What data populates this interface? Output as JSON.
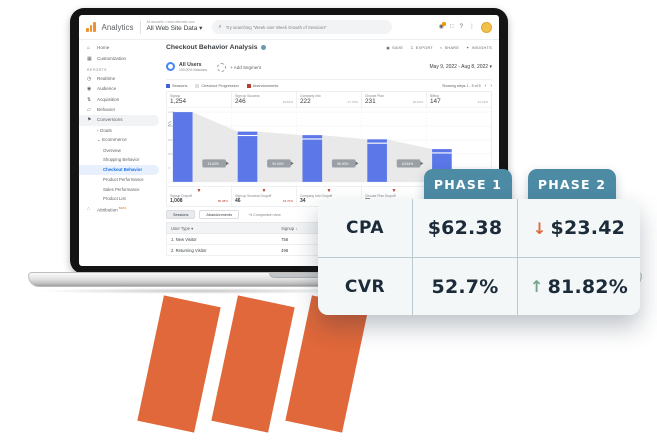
{
  "colors": {
    "accent_orange": "#e0683a",
    "tab_teal": "#4d8aa4",
    "card_bg": "#f4f7f8",
    "dark_text": "#1c2b39",
    "bar_blue": "#5b77e8",
    "legend_blue": "#4262d6",
    "legend_gray": "#e0e0e0",
    "legend_red": "#b3402e",
    "dropoff_red": "#c0392b",
    "up_green": "#74a489",
    "sidebar_selected_bg": "#e8f0fe",
    "sidebar_selected_text": "#1a73e8"
  },
  "analytics": {
    "topbar": {
      "logo_text": "Analytics",
      "account_line": "All accounts > www.demosite.com",
      "property": "All Web Site Data",
      "caret": "▾",
      "search_icon": "⌕",
      "search_placeholder": "Try searching \"Week over Week Growth of Sessions\"",
      "icons": [
        {
          "name": "notifications-icon",
          "glyph": "◉",
          "badge": true
        },
        {
          "name": "apps-grid-icon",
          "glyph": "∷",
          "badge": false
        },
        {
          "name": "help-icon",
          "glyph": "?",
          "badge": false
        },
        {
          "name": "more-vertical-icon",
          "glyph": "⋮",
          "badge": false
        }
      ]
    },
    "sidebar": {
      "items": [
        {
          "label": "Home",
          "icon": "home",
          "type": "item",
          "depth": 0
        },
        {
          "label": "Customization",
          "icon": "customization",
          "type": "item",
          "depth": 0
        },
        {
          "label": "REPORTS",
          "type": "section",
          "depth": 0
        },
        {
          "label": "Realtime",
          "icon": "realtime",
          "type": "item",
          "depth": 0
        },
        {
          "label": "Audience",
          "icon": "audience",
          "type": "item",
          "depth": 0
        },
        {
          "label": "Acquisition",
          "icon": "acquisition",
          "type": "item",
          "depth": 0
        },
        {
          "label": "Behavior",
          "icon": "behavior",
          "type": "item",
          "depth": 0
        },
        {
          "label": "Conversions",
          "icon": "conversions",
          "type": "item",
          "depth": 0,
          "parent": true
        },
        {
          "label": "› Goals",
          "type": "item",
          "depth": 1
        },
        {
          "label": "⌄ Ecommerce",
          "type": "item",
          "depth": 1
        },
        {
          "label": "Overview",
          "type": "item",
          "depth": 2
        },
        {
          "label": "Shopping Behavior",
          "type": "item",
          "depth": 2
        },
        {
          "label": "Checkout Behavior",
          "type": "item",
          "depth": 2,
          "selected": true
        },
        {
          "label": "Product Performance",
          "type": "item",
          "depth": 2
        },
        {
          "label": "Sales Performance",
          "type": "item",
          "depth": 2
        },
        {
          "label": "Product List",
          "type": "item",
          "depth": 2
        },
        {
          "label": "Attribution",
          "icon": "attribution",
          "type": "item",
          "depth": 0,
          "badge": "BETA"
        }
      ]
    },
    "report": {
      "title": "Checkout Behavior Analysis",
      "actions": [
        {
          "icon": "▣",
          "label": "SAVE"
        },
        {
          "icon": "↧",
          "label": "EXPORT"
        },
        {
          "icon": "<",
          "label": "SHARE"
        },
        {
          "icon": "✦",
          "label": "INSIGHTS"
        }
      ],
      "segment": {
        "name": "All Users",
        "detail": "100.00% Sessions"
      },
      "add_segment": "+ Add Segment",
      "date_range": "May 9, 2022 - Aug 8, 2022",
      "paging_label": "Showing steps 1 - 5 of 5",
      "prev": "‹",
      "next": "›"
    },
    "chart_data": {
      "type": "bar",
      "subtype": "funnel",
      "title": "Checkout Behavior Analysis",
      "categories": [
        "Signup",
        "Sign up Success",
        "Company Info",
        "Choose Plan",
        "Billing"
      ],
      "values": [
        1254,
        246,
        222,
        231,
        147
      ],
      "value_labels": [
        "1,254",
        "246",
        "222",
        "231",
        "147"
      ],
      "pct_of_total": [
        "",
        "19.62%",
        "17.70%",
        "18.42%",
        "11.72%"
      ],
      "proceed_pcts": [
        "19.62%",
        "90.24%",
        "96.40%",
        "63.64%"
      ],
      "dropoff_labels": [
        "Signup Dropoff",
        "Sign up Success Dropoff",
        "Company Info Dropoff",
        "Choose Plan Dropoff",
        "Billing Dropoff"
      ],
      "dropoff_values": [
        "1,008",
        "46",
        "34",
        "71",
        "0"
      ],
      "dropoff_pcts": [
        "80.38%",
        "18.70%",
        "15.32%",
        "30.74%",
        "0.00%"
      ],
      "bar_heights_pct": [
        100,
        72,
        67,
        61,
        47
      ],
      "y_ticks": [
        "1,200",
        "900",
        "600",
        "300",
        "0"
      ],
      "axis_break": true,
      "legend": [
        {
          "label": "Sessions",
          "color": "#4262d6"
        },
        {
          "label": "Checkout Progression",
          "color": "#e0e0e0"
        },
        {
          "label": "Abandonments",
          "color": "#b3402e"
        }
      ],
      "ylim": [
        0,
        1254
      ],
      "grid": true
    },
    "table": {
      "tabs": [
        {
          "label": "Sessions",
          "active": true
        },
        {
          "label": "Abandonments",
          "active": false
        }
      ],
      "view_label": "% Comparison view",
      "columns": [
        "User Type  ▾",
        "Signup  ↓",
        "Sign up Success",
        "%"
      ],
      "rows": [
        {
          "index": "1.",
          "user_type": "New Visitor",
          "signup": "756",
          "signup_success": "152",
          "pct": "20.11%"
        },
        {
          "index": "2.",
          "user_type": "Returning Visitor",
          "signup": "498",
          "signup_success": "94",
          "pct": "18.88%"
        }
      ]
    }
  },
  "overlay": {
    "tab1": "PHASE 1",
    "tab2": "PHASE 2",
    "rows": [
      {
        "metric": "CPA",
        "phase1": "$62.38",
        "phase2": "$23.42",
        "arrow": "↓",
        "direction": "down"
      },
      {
        "metric": "CVR",
        "phase1": "52.7%",
        "phase2": "81.82%",
        "arrow": "↑",
        "direction": "up"
      }
    ]
  }
}
